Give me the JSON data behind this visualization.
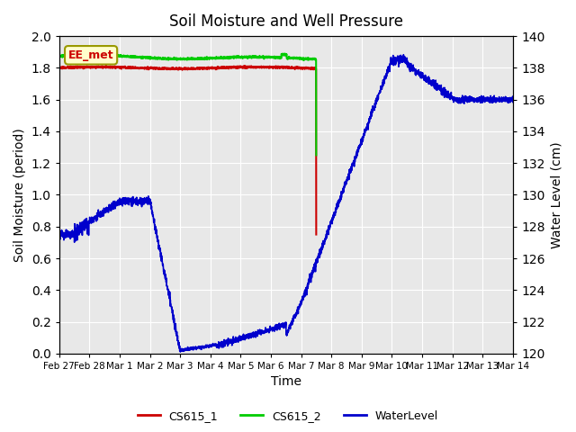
{
  "title": "Soil Moisture and Well Pressure",
  "xlabel": "Time",
  "ylabel_left": "Soil Moisture (period)",
  "ylabel_right": "Water Level (cm)",
  "annotation": "EE_met",
  "ylim_left": [
    0.0,
    2.0
  ],
  "ylim_right": [
    120,
    140
  ],
  "background_color": "#e8e8e8",
  "figure_color": "#ffffff",
  "cs615_1_color": "#cc0000",
  "cs615_2_color": "#00cc00",
  "water_level_color": "#0000cc",
  "xtick_labels": [
    "Feb 27",
    "Feb 28",
    "Mar 1",
    "Mar 2",
    "Mar 3",
    "Mar 4",
    "Mar 5",
    "Mar 6",
    "Mar 7",
    "Mar 8",
    "Mar 9",
    "Mar 10",
    "Mar 11",
    "Mar 12",
    "Mar 13",
    "Mar 14"
  ],
  "yticks_left": [
    0.0,
    0.2,
    0.4,
    0.6,
    0.8,
    1.0,
    1.2,
    1.4,
    1.6,
    1.8,
    2.0
  ],
  "yticks_right": [
    120,
    122,
    124,
    126,
    128,
    130,
    132,
    134,
    136,
    138,
    140
  ]
}
